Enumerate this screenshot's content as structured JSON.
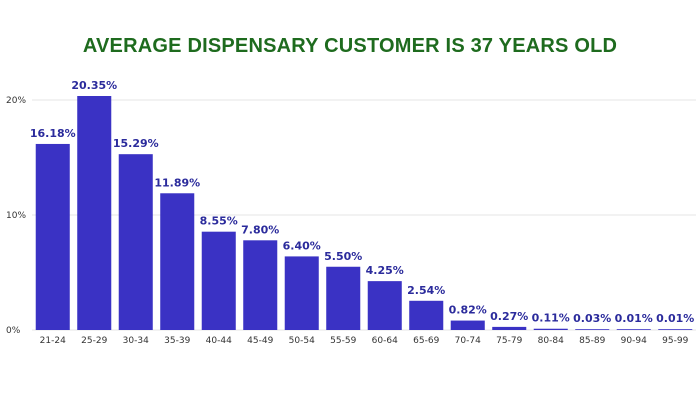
{
  "chart_data": {
    "type": "bar",
    "title": "AVERAGE DISPENSARY CUSTOMER IS 37 YEARS OLD",
    "xlabel": "",
    "ylabel": "",
    "ylim": [
      0,
      0.2035
    ],
    "yticks": [
      0,
      0.1,
      0.2
    ],
    "ytick_labels": [
      "0%",
      "10%",
      "20%"
    ],
    "grid": true,
    "categories": [
      "21-24",
      "25-29",
      "30-34",
      "35-39",
      "40-44",
      "45-49",
      "50-54",
      "55-59",
      "60-64",
      "65-69",
      "70-74",
      "75-79",
      "80-84",
      "85-89",
      "90-94",
      "95-99"
    ],
    "values": [
      0.1618,
      0.2035,
      0.1529,
      0.1189,
      0.0855,
      0.078,
      0.064,
      0.055,
      0.0425,
      0.0254,
      0.0082,
      0.0027,
      0.0011,
      0.0003,
      0.0001,
      0.0001
    ],
    "data_labels": [
      "16.18%",
      "20.35%",
      "15.29%",
      "11.89%",
      "8.55%",
      "7.80%",
      "6.40%",
      "5.50%",
      "4.25%",
      "2.54%",
      "0.82%",
      "0.27%",
      "0.11%",
      "0.03%",
      "0.01%",
      "0.01%"
    ],
    "colors": {
      "bar": "#3a32c4",
      "label": "#2b2b9c",
      "title": "#1e6b1e",
      "grid": "#e4e4e4"
    }
  }
}
